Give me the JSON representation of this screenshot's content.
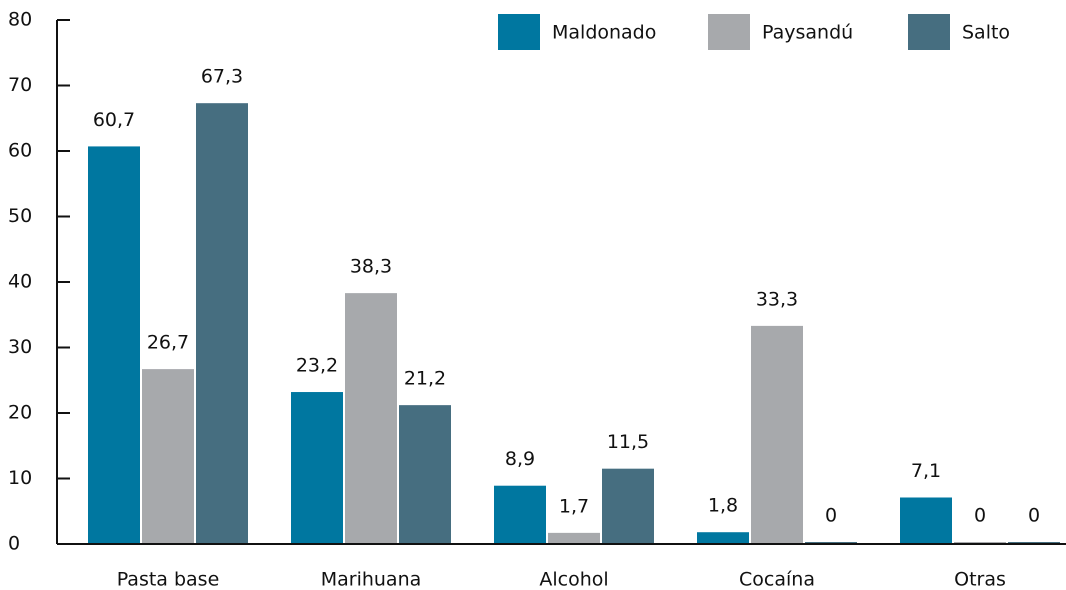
{
  "chart_data": {
    "type": "bar",
    "categories": [
      "Pasta base",
      "Marihuana",
      "Alcohol",
      "Cocaína",
      "Otras"
    ],
    "series": [
      {
        "name": "Maldonado",
        "color": "#0077a0",
        "values": [
          60.7,
          23.2,
          8.9,
          1.8,
          7.1
        ],
        "value_labels": [
          "60,7",
          "23,2",
          "8,9",
          "1,8",
          "7,1"
        ]
      },
      {
        "name": "Paysandú",
        "color": "#a7a9ac",
        "values": [
          26.7,
          38.3,
          1.7,
          33.3,
          0
        ],
        "value_labels": [
          "26,7",
          "38,3",
          "1,7",
          "33,3",
          "0"
        ]
      },
      {
        "name": "Salto",
        "color": "#466e80",
        "values": [
          67.3,
          21.2,
          11.5,
          0,
          0
        ],
        "value_labels": [
          "67,3",
          "21,2",
          "11,5",
          "0",
          "0"
        ]
      }
    ],
    "ylim": [
      0,
      80
    ],
    "yticks": [
      0,
      10,
      20,
      30,
      40,
      50,
      60,
      70,
      80
    ],
    "legend": "top-right"
  }
}
